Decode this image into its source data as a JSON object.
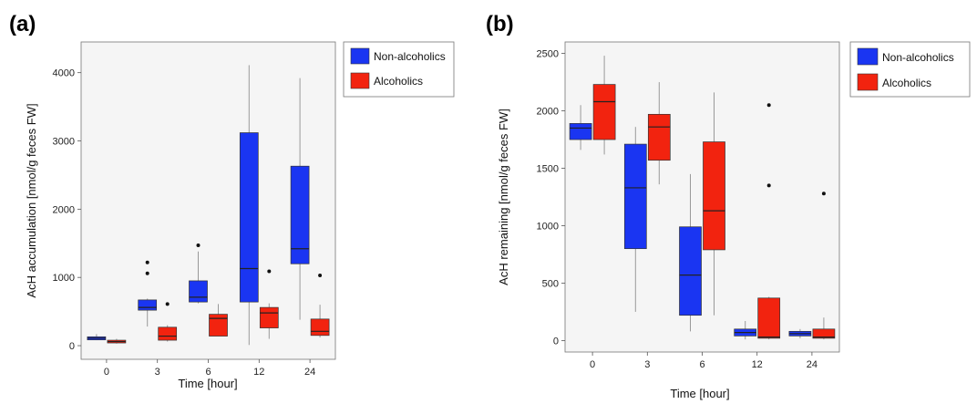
{
  "colors": {
    "series_1": "#1a35f2",
    "series_2": "#f2230f",
    "panel_bg": "#f5f5f5"
  },
  "chart_data": [
    {
      "type": "box",
      "panel_label": "(a)",
      "xlabel": "Time [hour]",
      "ylabel": "AcH accumulation [nmol/g feces FW]",
      "categories": [
        "0",
        "3",
        "6",
        "12",
        "24"
      ],
      "ylim": [
        -200,
        4450
      ],
      "yticks": [
        0,
        1000,
        2000,
        3000,
        4000
      ],
      "grid": false,
      "legend_position": "top-right-outside",
      "series": [
        {
          "name": "Non-alcoholics",
          "boxes": [
            {
              "min": 80,
              "q1": 85,
              "median": 110,
              "q3": 130,
              "max": 170,
              "outliers": []
            },
            {
              "min": 280,
              "q1": 520,
              "median": 560,
              "q3": 670,
              "max": 690,
              "outliers": [
                1060,
                1220
              ]
            },
            {
              "min": 620,
              "q1": 640,
              "median": 710,
              "q3": 950,
              "max": 1380,
              "outliers": [
                1470
              ]
            },
            {
              "min": 10,
              "q1": 640,
              "median": 1130,
              "q3": 3120,
              "max": 4110,
              "outliers": []
            },
            {
              "min": 380,
              "q1": 1200,
              "median": 1420,
              "q3": 2630,
              "max": 3920,
              "outliers": []
            }
          ]
        },
        {
          "name": "Alcoholics",
          "boxes": [
            {
              "min": 30,
              "q1": 40,
              "median": 60,
              "q3": 80,
              "max": 100,
              "outliers": []
            },
            {
              "min": 60,
              "q1": 80,
              "median": 140,
              "q3": 270,
              "max": 300,
              "outliers": [
                610
              ]
            },
            {
              "min": 140,
              "q1": 140,
              "median": 400,
              "q3": 460,
              "max": 610,
              "outliers": []
            },
            {
              "min": 100,
              "q1": 260,
              "median": 480,
              "q3": 560,
              "max": 620,
              "outliers": [
                1090
              ]
            },
            {
              "min": 120,
              "q1": 150,
              "median": 210,
              "q3": 390,
              "max": 600,
              "outliers": [
                1030
              ]
            }
          ]
        }
      ]
    },
    {
      "type": "box",
      "panel_label": "(b)",
      "xlabel": "Time [hour]",
      "ylabel": "AcH remaining [nmol/g feces FW]",
      "categories": [
        "0",
        "3",
        "6",
        "12",
        "24"
      ],
      "ylim": [
        -100,
        2600
      ],
      "yticks": [
        0,
        500,
        1000,
        1500,
        2000,
        2500
      ],
      "grid": false,
      "legend_position": "top-right-outside",
      "series": [
        {
          "name": "Non-alcoholics",
          "boxes": [
            {
              "min": 1660,
              "q1": 1750,
              "median": 1850,
              "q3": 1890,
              "max": 2050,
              "outliers": []
            },
            {
              "min": 250,
              "q1": 800,
              "median": 1330,
              "q3": 1710,
              "max": 1860,
              "outliers": []
            },
            {
              "min": 80,
              "q1": 220,
              "median": 570,
              "q3": 990,
              "max": 1450,
              "outliers": []
            },
            {
              "min": 10,
              "q1": 40,
              "median": 70,
              "q3": 100,
              "max": 170,
              "outliers": []
            },
            {
              "min": 20,
              "q1": 40,
              "median": 60,
              "q3": 80,
              "max": 100,
              "outliers": []
            }
          ]
        },
        {
          "name": "Alcoholics",
          "boxes": [
            {
              "min": 1620,
              "q1": 1750,
              "median": 2080,
              "q3": 2230,
              "max": 2480,
              "outliers": []
            },
            {
              "min": 1360,
              "q1": 1570,
              "median": 1860,
              "q3": 1970,
              "max": 2250,
              "outliers": []
            },
            {
              "min": 220,
              "q1": 790,
              "median": 1130,
              "q3": 1730,
              "max": 2160,
              "outliers": []
            },
            {
              "min": 10,
              "q1": 20,
              "median": 30,
              "q3": 370,
              "max": 380,
              "outliers": [
                1350,
                2050
              ]
            },
            {
              "min": 10,
              "q1": 20,
              "median": 30,
              "q3": 100,
              "max": 200,
              "outliers": [
                1280
              ]
            }
          ]
        }
      ]
    }
  ]
}
